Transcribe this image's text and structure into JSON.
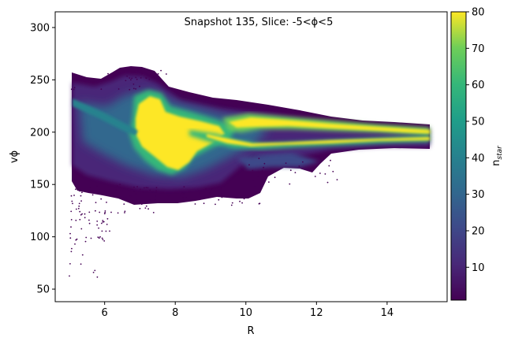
{
  "chart_data": {
    "type": "heatmap",
    "title": "Snapshot 135, Slice: -5<ϕ<5",
    "xlabel": "R",
    "ylabel": "vϕ",
    "xlim": [
      4.6,
      15.7
    ],
    "ylim": [
      38,
      315
    ],
    "xticks": [
      6,
      8,
      10,
      12,
      14
    ],
    "yticks": [
      50,
      100,
      150,
      200,
      250,
      300
    ],
    "grid": false,
    "colorbar": {
      "label_main": "n",
      "label_sub": "star",
      "colormap": "viridis",
      "range": [
        1,
        80
      ],
      "ticks": [
        10,
        20,
        30,
        40,
        50,
        60,
        70,
        80
      ]
    },
    "colors": {
      "low": "#440154",
      "mid": "#21918c",
      "high": "#fde725"
    },
    "features": {
      "main_clump": {
        "R_range": [
          6.8,
          9.6
        ],
        "vphi_range": [
          160,
          240
        ],
        "density": "saturated"
      },
      "upper_ridge": {
        "R_range": [
          9.6,
          15
        ],
        "vphi_range": [
          196,
          214
        ],
        "density": "high"
      },
      "lower_ridge": {
        "R_range": [
          8.5,
          15
        ],
        "vphi_range": [
          185,
          200
        ],
        "density": "high"
      },
      "outer_envelope": {
        "R_range": [
          5,
          15
        ],
        "vphi_range": [
          135,
          258
        ],
        "density": "low"
      },
      "sparse_tail": {
        "R_range": [
          5,
          7
        ],
        "vphi_range": [
          55,
          130
        ],
        "density": "very low"
      }
    }
  }
}
